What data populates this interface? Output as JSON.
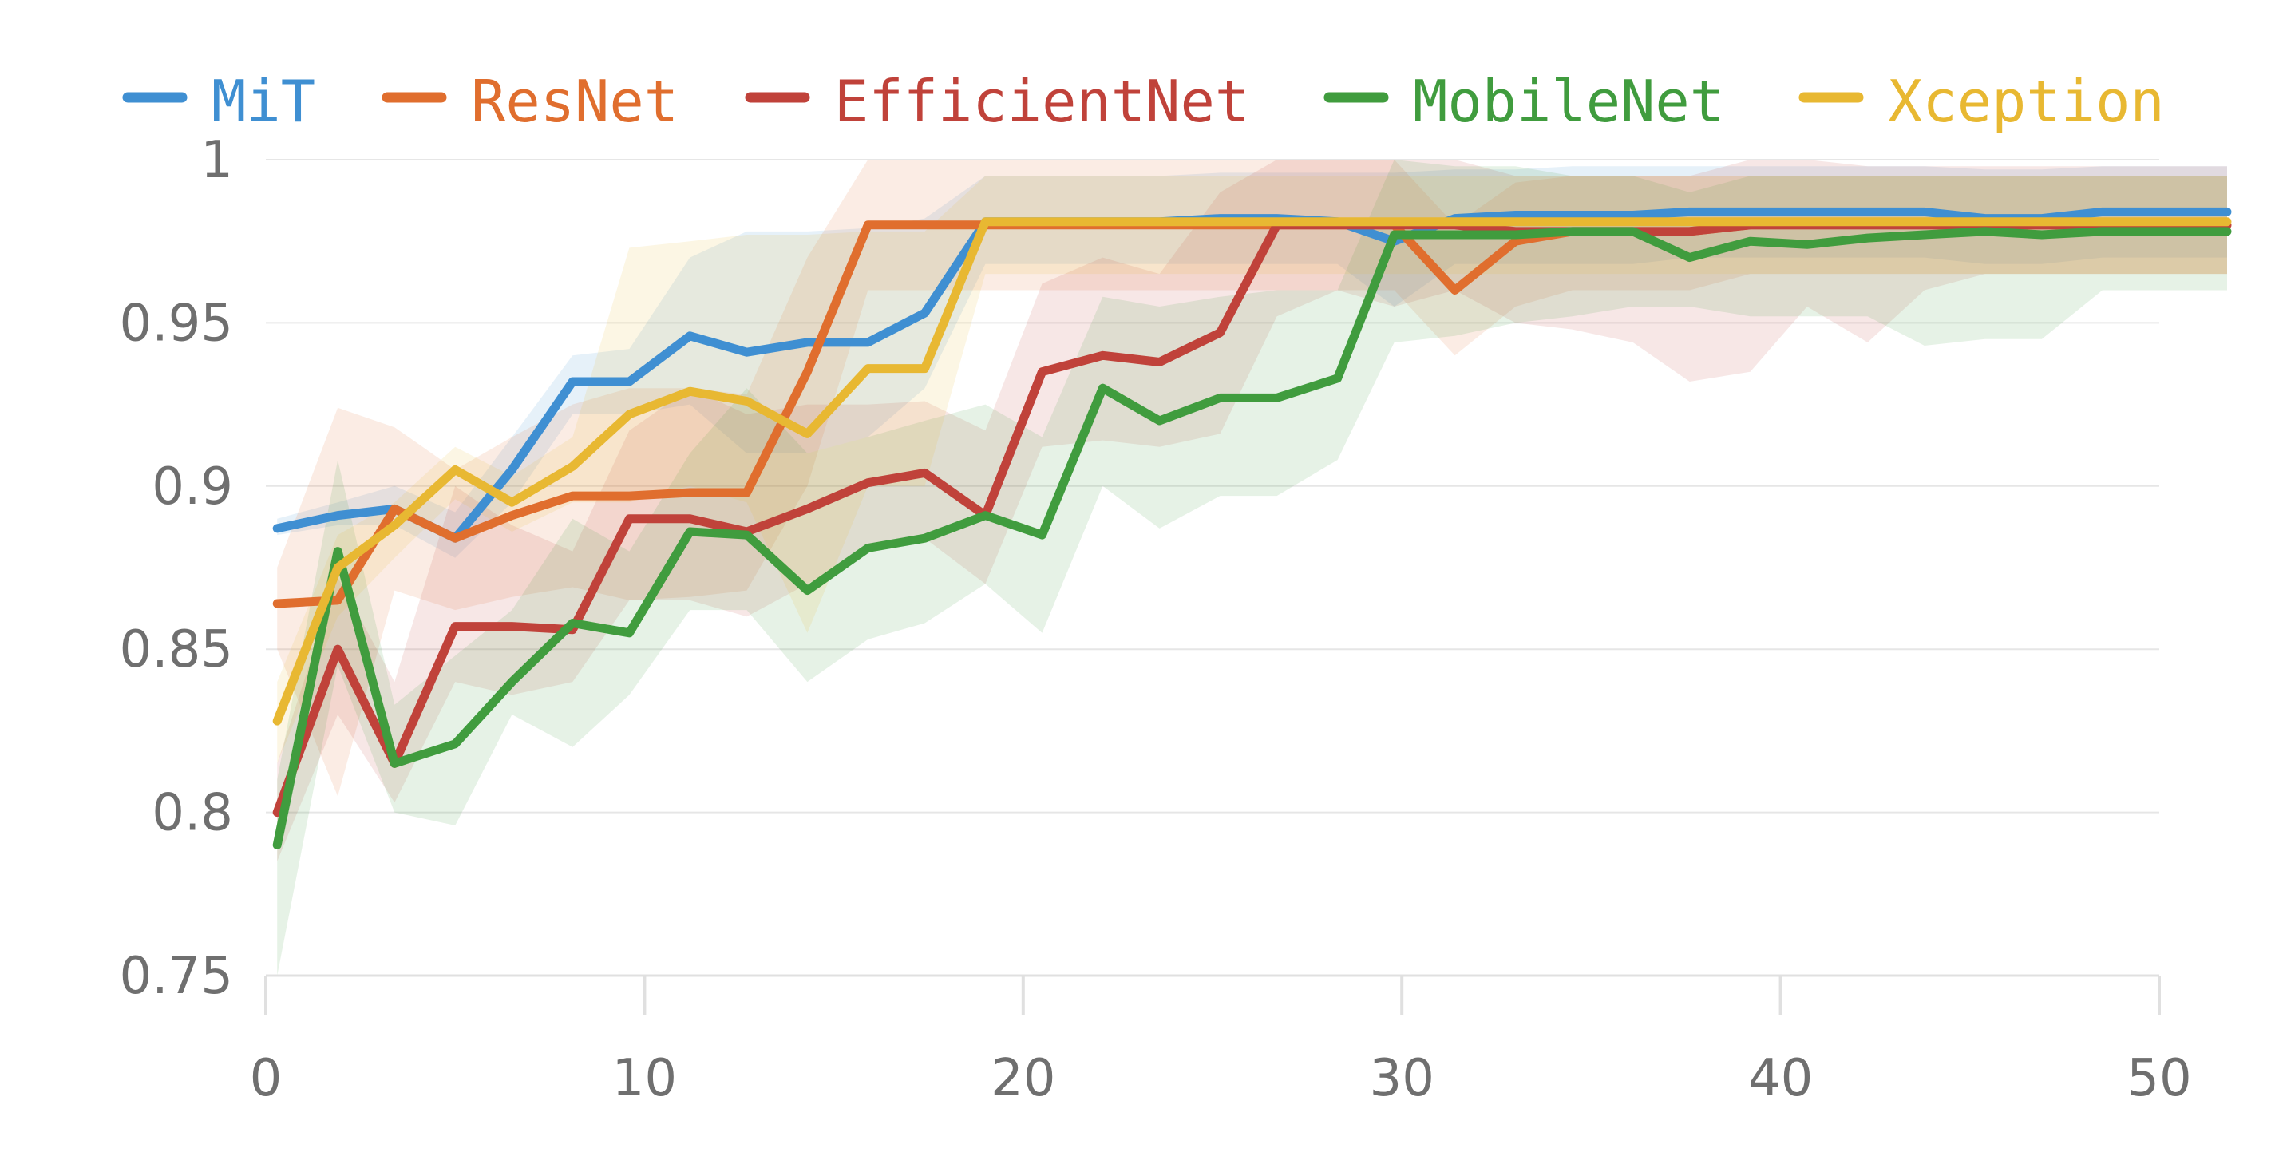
{
  "chart_data": {
    "type": "line",
    "title": "",
    "xlabel": "",
    "ylabel": "",
    "xlim": [
      0,
      52
    ],
    "ylim": [
      0.75,
      1.0
    ],
    "x_ticks": [
      0,
      10,
      20,
      30,
      40,
      50
    ],
    "x_tick_labels": [
      "0",
      "10",
      "20",
      "30",
      "40",
      "50"
    ],
    "y_ticks": [
      0.75,
      0.8,
      0.85,
      0.9,
      0.95,
      1.0
    ],
    "y_tick_labels": [
      "0.75",
      "0.8",
      "0.85",
      "0.9",
      "0.95",
      "1"
    ],
    "grid": "horizontal",
    "legend_position": "top",
    "x": [
      0.3,
      1.9,
      3.4,
      5.0,
      6.5,
      8.1,
      9.6,
      11.2,
      12.7,
      14.3,
      15.9,
      17.4,
      19.0,
      20.5,
      22.1,
      23.6,
      25.2,
      26.7,
      28.3,
      29.8,
      31.4,
      33.0,
      34.5,
      36.1,
      37.6,
      39.2,
      40.7,
      42.3,
      43.8,
      45.4,
      46.9,
      48.5,
      52.0
    ],
    "series": [
      {
        "name": "MiT",
        "color": "#3f8fd2",
        "values": [
          0.887,
          0.891,
          0.893,
          0.884,
          0.905,
          0.932,
          0.932,
          0.946,
          0.941,
          0.944,
          0.944,
          0.953,
          0.981,
          0.981,
          0.981,
          0.981,
          0.982,
          0.982,
          0.981,
          0.975,
          0.982,
          0.983,
          0.983,
          0.983,
          0.984,
          0.984,
          0.984,
          0.984,
          0.984,
          0.982,
          0.982,
          0.984,
          0.984
        ],
        "band_upper": [
          0.89,
          0.895,
          0.9,
          0.892,
          0.915,
          0.94,
          0.942,
          0.97,
          0.978,
          0.978,
          0.979,
          0.982,
          0.995,
          0.995,
          0.995,
          0.995,
          0.996,
          0.996,
          0.996,
          0.996,
          0.997,
          0.997,
          0.998,
          0.998,
          0.998,
          0.998,
          0.998,
          0.998,
          0.998,
          0.997,
          0.997,
          0.998,
          0.998
        ],
        "band_lower": [
          0.885,
          0.888,
          0.888,
          0.878,
          0.895,
          0.922,
          0.922,
          0.925,
          0.91,
          0.91,
          0.915,
          0.93,
          0.968,
          0.968,
          0.968,
          0.968,
          0.968,
          0.968,
          0.968,
          0.955,
          0.968,
          0.968,
          0.968,
          0.968,
          0.97,
          0.97,
          0.97,
          0.97,
          0.97,
          0.968,
          0.968,
          0.97,
          0.97
        ]
      },
      {
        "name": "ResNet",
        "color": "#e06e2e",
        "values": [
          0.864,
          0.865,
          0.893,
          0.884,
          0.891,
          0.897,
          0.897,
          0.898,
          0.898,
          0.935,
          0.98,
          0.98,
          0.98,
          0.98,
          0.98,
          0.98,
          0.98,
          0.98,
          0.98,
          0.98,
          0.96,
          0.975,
          0.978,
          0.978,
          0.978,
          0.98,
          0.98,
          0.98,
          0.98,
          0.98,
          0.98,
          0.98,
          0.98
        ],
        "band_upper": [
          0.875,
          0.924,
          0.918,
          0.905,
          0.915,
          0.925,
          0.93,
          0.93,
          0.928,
          0.97,
          1.0,
          1.0,
          1.0,
          1.0,
          1.0,
          1.0,
          1.0,
          1.0,
          1.0,
          1.0,
          0.98,
          0.993,
          0.995,
          0.995,
          0.995,
          0.995,
          0.995,
          0.995,
          0.995,
          0.995,
          0.995,
          0.995,
          0.995
        ],
        "band_lower": [
          0.85,
          0.805,
          0.868,
          0.862,
          0.866,
          0.869,
          0.865,
          0.866,
          0.868,
          0.9,
          0.96,
          0.96,
          0.96,
          0.96,
          0.96,
          0.96,
          0.96,
          0.96,
          0.96,
          0.96,
          0.94,
          0.955,
          0.96,
          0.96,
          0.96,
          0.965,
          0.965,
          0.965,
          0.965,
          0.965,
          0.965,
          0.965,
          0.965
        ]
      },
      {
        "name": "EfficientNet",
        "color": "#c0423a",
        "values": [
          0.8,
          0.85,
          0.815,
          0.857,
          0.857,
          0.856,
          0.89,
          0.89,
          0.886,
          0.893,
          0.901,
          0.904,
          0.891,
          0.935,
          0.94,
          0.938,
          0.947,
          0.98,
          0.98,
          0.98,
          0.98,
          0.978,
          0.978,
          0.978,
          0.978,
          0.98,
          0.98,
          0.98,
          0.98,
          0.98,
          0.98,
          0.98,
          0.98
        ],
        "band_upper": [
          0.815,
          0.872,
          0.84,
          0.9,
          0.888,
          0.88,
          0.917,
          0.93,
          0.922,
          0.925,
          0.925,
          0.926,
          0.917,
          0.962,
          0.97,
          0.965,
          0.99,
          1.0,
          1.0,
          1.0,
          1.0,
          0.995,
          0.995,
          0.995,
          0.995,
          1.0,
          1.0,
          0.998,
          0.998,
          0.998,
          0.998,
          0.998,
          0.998
        ],
        "band_lower": [
          0.785,
          0.83,
          0.803,
          0.84,
          0.836,
          0.84,
          0.865,
          0.865,
          0.86,
          0.87,
          0.88,
          0.884,
          0.87,
          0.912,
          0.914,
          0.912,
          0.916,
          0.952,
          0.96,
          0.955,
          0.96,
          0.95,
          0.948,
          0.944,
          0.932,
          0.935,
          0.955,
          0.944,
          0.96,
          0.965,
          0.965,
          0.965,
          0.965
        ]
      },
      {
        "name": "MobileNet",
        "color": "#409c3e",
        "values": [
          0.79,
          0.88,
          0.815,
          0.821,
          0.84,
          0.858,
          0.855,
          0.886,
          0.885,
          0.868,
          0.881,
          0.884,
          0.891,
          0.885,
          0.93,
          0.92,
          0.927,
          0.927,
          0.933,
          0.977,
          0.977,
          0.977,
          0.978,
          0.978,
          0.97,
          0.975,
          0.974,
          0.976,
          0.977,
          0.978,
          0.977,
          0.978,
          0.978
        ],
        "band_upper": [
          0.81,
          0.908,
          0.833,
          0.848,
          0.862,
          0.89,
          0.88,
          0.91,
          0.93,
          0.91,
          0.915,
          0.92,
          0.925,
          0.915,
          0.958,
          0.955,
          0.958,
          0.96,
          0.96,
          1.0,
          0.998,
          0.998,
          0.995,
          0.995,
          0.99,
          0.995,
          0.995,
          0.995,
          0.995,
          0.995,
          0.995,
          0.995,
          0.995
        ],
        "band_lower": [
          0.75,
          0.845,
          0.8,
          0.796,
          0.83,
          0.82,
          0.836,
          0.862,
          0.862,
          0.84,
          0.853,
          0.858,
          0.87,
          0.855,
          0.9,
          0.887,
          0.897,
          0.897,
          0.908,
          0.944,
          0.946,
          0.95,
          0.952,
          0.955,
          0.955,
          0.952,
          0.952,
          0.952,
          0.943,
          0.945,
          0.945,
          0.96,
          0.96
        ]
      },
      {
        "name": "Xception",
        "color": "#e8b832",
        "values": [
          0.828,
          0.875,
          0.888,
          0.905,
          0.895,
          0.906,
          0.922,
          0.929,
          0.926,
          0.916,
          0.936,
          0.936,
          0.981,
          0.981,
          0.981,
          0.981,
          0.981,
          0.981,
          0.981,
          0.981,
          0.981,
          0.981,
          0.981,
          0.981,
          0.981,
          0.981,
          0.981,
          0.981,
          0.981,
          0.981,
          0.981,
          0.981,
          0.981
        ],
        "band_upper": [
          0.84,
          0.885,
          0.895,
          0.912,
          0.903,
          0.915,
          0.973,
          0.975,
          0.977,
          0.977,
          0.978,
          0.978,
          0.995,
          0.995,
          0.995,
          0.995,
          0.995,
          0.995,
          0.995,
          0.995,
          0.995,
          0.995,
          0.995,
          0.995,
          0.995,
          0.995,
          0.995,
          0.995,
          0.995,
          0.995,
          0.995,
          0.995,
          0.995
        ],
        "band_lower": [
          0.815,
          0.86,
          0.878,
          0.896,
          0.886,
          0.895,
          0.895,
          0.9,
          0.895,
          0.855,
          0.9,
          0.9,
          0.965,
          0.965,
          0.965,
          0.965,
          0.965,
          0.965,
          0.965,
          0.965,
          0.965,
          0.965,
          0.965,
          0.965,
          0.965,
          0.965,
          0.965,
          0.965,
          0.965,
          0.965,
          0.965,
          0.965,
          0.965
        ]
      }
    ]
  }
}
